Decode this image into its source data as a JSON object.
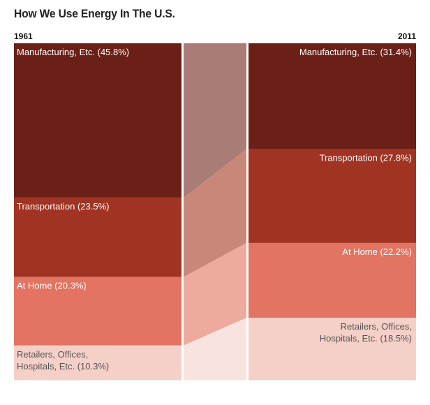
{
  "chart_data": {
    "type": "bar",
    "subtype": "stacked-100-slope",
    "title": "How We Use Energy In The U.S.",
    "categories": [
      "1961",
      "2011"
    ],
    "series": [
      {
        "name": "Manufacturing, Etc.",
        "values": [
          45.8,
          31.4
        ],
        "color": "#6b2017",
        "link_color": "#a97c75"
      },
      {
        "name": "Transportation",
        "values": [
          23.5,
          27.8
        ],
        "color": "#a03322",
        "link_color": "#c9877a"
      },
      {
        "name": "At Home",
        "values": [
          20.3,
          22.2
        ],
        "color": "#e27461",
        "link_color": "#eeaa9c"
      },
      {
        "name": "Retailers, Offices, Hospitals, Etc.",
        "values": [
          10.3,
          18.5
        ],
        "color": "#f5d0c8",
        "link_color": "#f9e3de"
      }
    ],
    "labels_left": [
      "Manufacturing, Etc. (45.8%)",
      "Transportation (23.5%)",
      "At Home (20.3%)",
      [
        "Retailers, Offices,",
        "Hospitals, Etc. (10.3%)"
      ]
    ],
    "labels_right": [
      "Manufacturing, Etc. (31.4%)",
      "Transportation (27.8%)",
      "At Home (22.2%)",
      [
        "Retailers, Offices,",
        "Hospitals, Etc. (18.5%)"
      ]
    ],
    "label_colors": [
      "#ffffff",
      "#ffffff",
      "#ffffff",
      "#555555"
    ],
    "unit": "%"
  }
}
